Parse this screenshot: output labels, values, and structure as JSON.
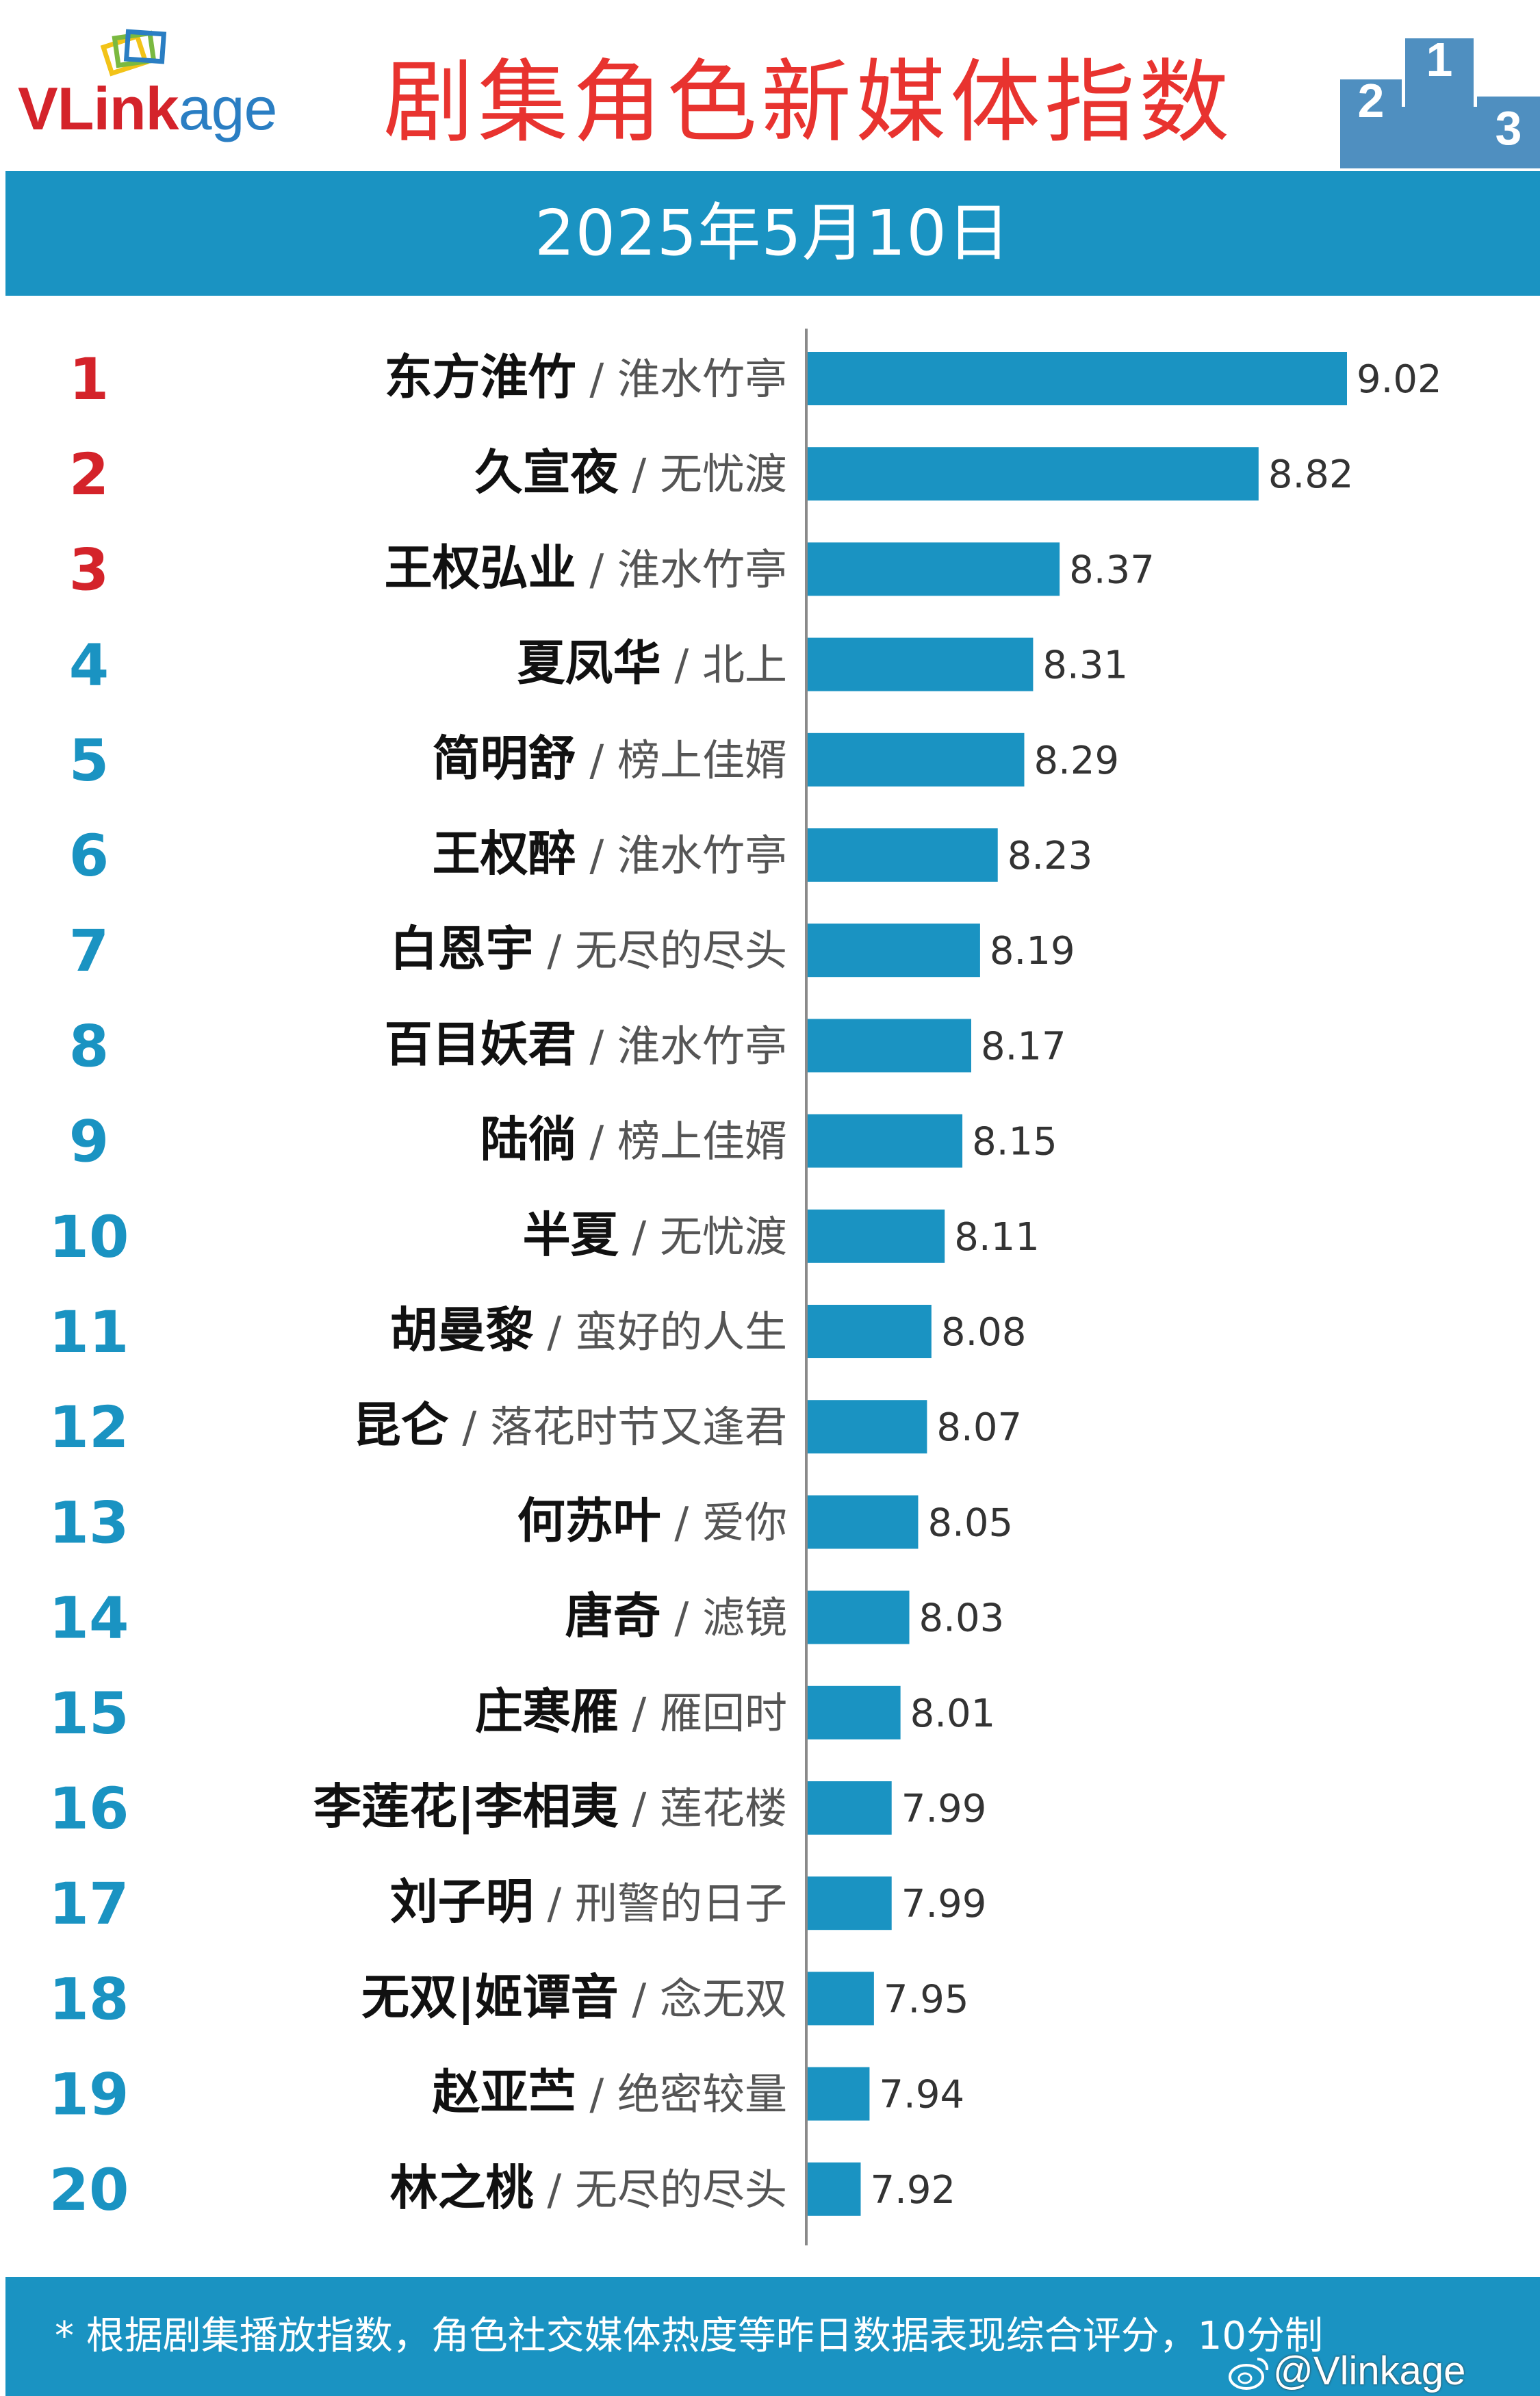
{
  "logo": {
    "brand_main": "VLink",
    "brand_sub": "age"
  },
  "header": {
    "title": "剧集角色新媒体指数"
  },
  "date": "2025年5月10日",
  "podium_labels": [
    "2",
    "1",
    "3"
  ],
  "colors": {
    "bar": "#1a93c2",
    "band": "#1a93c2",
    "title": "#e8332f",
    "top_rank": "#d4232a",
    "rank": "#1a93c2"
  },
  "chart_data": {
    "type": "bar",
    "orientation": "horizontal",
    "ranks": [
      "1",
      "2",
      "3",
      "4",
      "5",
      "6",
      "7",
      "8",
      "9",
      "10",
      "11",
      "12",
      "13",
      "14",
      "15",
      "16",
      "17",
      "18",
      "19",
      "20"
    ],
    "roles": [
      "东方淮竹",
      "久宣夜",
      "王权弘业",
      "夏凤华",
      "简明舒",
      "王权醉",
      "白恩宇",
      "百目妖君",
      "陆徜",
      "半夏",
      "胡曼黎",
      "昆仑",
      "何苏叶",
      "唐奇",
      "庄寒雁",
      "李莲花|李相夷",
      "刘子明",
      "无双|姬谭音",
      "赵亚苎",
      "林之桃"
    ],
    "dramas": [
      "淮水竹亭",
      "无忧渡",
      "淮水竹亭",
      "北上",
      "榜上佳婿",
      "淮水竹亭",
      "无尽的尽头",
      "淮水竹亭",
      "榜上佳婿",
      "无忧渡",
      "蛮好的人生",
      "落花时节又逢君",
      "爱你",
      "滤镜",
      "雁回时",
      "莲花楼",
      "刑警的日子",
      "念无双",
      "绝密较量",
      "无尽的尽头"
    ],
    "values": [
      9.02,
      8.82,
      8.37,
      8.31,
      8.29,
      8.23,
      8.19,
      8.17,
      8.15,
      8.11,
      8.08,
      8.07,
      8.05,
      8.03,
      8.01,
      7.99,
      7.99,
      7.95,
      7.94,
      7.92
    ],
    "value_labels": [
      "9.02",
      "8.82",
      "8.37",
      "8.31",
      "8.29",
      "8.23",
      "8.19",
      "8.17",
      "8.15",
      "8.11",
      "8.08",
      "8.07",
      "8.05",
      "8.03",
      "8.01",
      "7.99",
      "7.99",
      "7.95",
      "7.94",
      "7.92"
    ],
    "separator": "/",
    "xlim": [
      7.8,
      9.02
    ]
  },
  "footer": {
    "note": "* 根据剧集播放指数，角色社交媒体热度等昨日数据表现综合评分，10分制",
    "watermark": "@Vlinkage"
  }
}
